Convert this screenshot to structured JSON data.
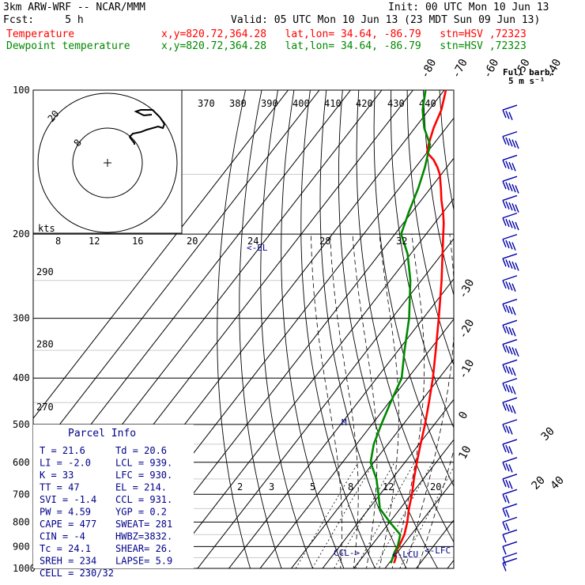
{
  "header": {
    "model": "3km ARW-WRF -- NCAR/MMM",
    "init": "Init: 00 UTC Mon 10 Jun 13",
    "fcst": "Fcst:     5 h",
    "valid": "Valid: 05 UTC Mon 10 Jun 13 (23 MDT Sun 09 Jun 13)",
    "temp_label": "Temperature",
    "temp_info": "x,y=820.72,364.28   lat,lon= 34.64, -86.79   stn=HSV ,72323",
    "dew_label": "Dewpoint temperature",
    "dew_info": "x,y=820.72,364.28   lat,lon= 34.64, -86.79   stn=HSV ,72323"
  },
  "colors": {
    "temperature": "#ff0000",
    "dewpoint": "#008800",
    "annotation": "#00008b",
    "barb": "#0000aa"
  },
  "barb_legend": {
    "title": "Full barb:",
    "units": "5 m s⁻¹"
  },
  "chart_data": {
    "type": "line",
    "title": "",
    "y_axis": {
      "quantity": "pressure",
      "units": "hPa",
      "scale": "log",
      "range": [
        1000,
        100
      ],
      "tick_labels": [
        "100",
        "200",
        "300",
        "400",
        "500",
        "600",
        "700",
        "800",
        "900",
        "1000"
      ]
    },
    "isotherm_labels": [
      "-80",
      "-70",
      "-60",
      "-50",
      "-40",
      "-30",
      "-20",
      "-10",
      "0",
      "10",
      "20",
      "30",
      "40"
    ],
    "theta_labels": [
      "370",
      "380",
      "390",
      "400",
      "410",
      "420",
      "430",
      "440"
    ],
    "theta_side_labels": [
      {
        "text": "290",
        "p": 240
      },
      {
        "text": "280",
        "p": 340
      },
      {
        "text": "270",
        "p": 460
      }
    ],
    "mixing_ratio_labels": [
      "2",
      "3",
      "5",
      "8",
      "12",
      "20"
    ],
    "series": [
      {
        "name": "Temperature",
        "color": "#ff0000",
        "x_units": "degC",
        "points": [
          [
            975,
            21.6
          ],
          [
            950,
            20.8
          ],
          [
            925,
            19.3
          ],
          [
            900,
            19.0
          ],
          [
            850,
            17.8
          ],
          [
            800,
            15.6
          ],
          [
            750,
            12.8
          ],
          [
            700,
            10.2
          ],
          [
            650,
            7.0
          ],
          [
            600,
            3.8
          ],
          [
            550,
            0.5
          ],
          [
            500,
            -3.0
          ],
          [
            450,
            -7.2
          ],
          [
            400,
            -12.0
          ],
          [
            350,
            -18.0
          ],
          [
            300,
            -25.0
          ],
          [
            250,
            -33.5
          ],
          [
            200,
            -44.5
          ],
          [
            190,
            -47.0
          ],
          [
            180,
            -50.0
          ],
          [
            170,
            -53.5
          ],
          [
            160,
            -56.8
          ],
          [
            150,
            -60.5
          ],
          [
            145,
            -63.0
          ],
          [
            140,
            -66.0
          ],
          [
            135,
            -70.0
          ],
          [
            130,
            -71.5
          ],
          [
            120,
            -74.0
          ],
          [
            110,
            -76.0
          ],
          [
            100,
            -79.5
          ]
        ]
      },
      {
        "name": "Dewpoint temperature",
        "color": "#008800",
        "x_units": "degC",
        "points": [
          [
            975,
            20.6
          ],
          [
            950,
            19.8
          ],
          [
            925,
            19.0
          ],
          [
            900,
            18.6
          ],
          [
            850,
            16.5
          ],
          [
            800,
            10.0
          ],
          [
            750,
            3.5
          ],
          [
            700,
            -0.5
          ],
          [
            650,
            -5.0
          ],
          [
            600,
            -11.0
          ],
          [
            550,
            -14.5
          ],
          [
            500,
            -17.0
          ],
          [
            450,
            -19.5
          ],
          [
            400,
            -22.0
          ],
          [
            350,
            -28.0
          ],
          [
            300,
            -34.5
          ],
          [
            250,
            -43.5
          ],
          [
            220,
            -51.0
          ],
          [
            200,
            -58.0
          ],
          [
            180,
            -61.0
          ],
          [
            160,
            -64.0
          ],
          [
            145,
            -67.0
          ],
          [
            130,
            -71.0
          ],
          [
            120,
            -77.0
          ],
          [
            110,
            -82.0
          ],
          [
            100,
            -86.0
          ]
        ]
      }
    ],
    "levels": [
      {
        "text": "LCL",
        "p": 939
      },
      {
        "text": "LFC",
        "p": 930
      },
      {
        "text": "CCL",
        "p": 931
      },
      {
        "text": "EL",
        "p": 214
      },
      {
        "text": "M",
        "p": 505
      }
    ],
    "hodograph": {
      "units": "kts",
      "ring_labels": [
        "8",
        "12",
        "16",
        "20",
        "24",
        "28",
        "32"
      ],
      "inset_ring_labels": [
        "8",
        "20"
      ],
      "trace": [
        [
          34,
          23
        ],
        [
          34,
          25
        ],
        [
          30,
          30
        ],
        [
          28,
          33
        ],
        [
          32,
          37
        ],
        [
          42,
          39
        ],
        [
          50,
          42
        ],
        [
          64,
          46
        ],
        [
          70,
          44
        ],
        [
          72,
          49
        ],
        [
          66,
          58
        ],
        [
          57,
          67
        ],
        [
          48,
          67
        ],
        [
          42,
          67
        ],
        [
          36,
          65
        ],
        [
          46,
          60
        ],
        [
          56,
          61
        ]
      ]
    },
    "wind_barbs": [
      {
        "p": 110,
        "speed_ms": 15
      },
      {
        "p": 125,
        "speed_ms": 25
      },
      {
        "p": 140,
        "speed_ms": 20
      },
      {
        "p": 155,
        "speed_ms": 25
      },
      {
        "p": 170,
        "speed_ms": 25
      },
      {
        "p": 185,
        "speed_ms": 25
      },
      {
        "p": 205,
        "speed_ms": 20
      },
      {
        "p": 225,
        "speed_ms": 25
      },
      {
        "p": 250,
        "speed_ms": 20
      },
      {
        "p": 280,
        "speed_ms": 20
      },
      {
        "p": 310,
        "speed_ms": 20
      },
      {
        "p": 340,
        "speed_ms": 25
      },
      {
        "p": 375,
        "speed_ms": 20
      },
      {
        "p": 410,
        "speed_ms": 20
      },
      {
        "p": 450,
        "speed_ms": 20
      },
      {
        "p": 500,
        "speed_ms": 15
      },
      {
        "p": 550,
        "speed_ms": 15
      },
      {
        "p": 600,
        "speed_ms": 15
      },
      {
        "p": 650,
        "speed_ms": 15
      },
      {
        "p": 700,
        "speed_ms": 10
      },
      {
        "p": 750,
        "speed_ms": 10
      },
      {
        "p": 800,
        "speed_ms": 10
      },
      {
        "p": 850,
        "speed_ms": 5
      },
      {
        "p": 900,
        "speed_ms": 5
      },
      {
        "p": 950,
        "speed_ms": 5
      },
      {
        "p": 975,
        "speed_ms": 5
      }
    ],
    "parcel_info": {
      "title": "Parcel Info",
      "rows": [
        [
          "T  =     21.6",
          "Td =   20.6"
        ],
        [
          "LI =     -2.0",
          "LCL =  939."
        ],
        [
          "K  =       33",
          "LFC =  930."
        ],
        [
          "TT =       47",
          "EL  =  214."
        ],
        [
          "SVI =    -1.4",
          "CCL =  931."
        ],
        [
          "PW =     4.59",
          "YGP =   0.2"
        ],
        [
          "CAPE =    477",
          "SWEAT=  281"
        ],
        [
          "CIN =      -4",
          "HWBZ=3832."
        ],
        [
          "Tc =     24.1",
          "SHEAR=  26."
        ],
        [
          "SREH =    234",
          "LAPSE=  5.9"
        ],
        [
          "CELL = 230/32",
          ""
        ]
      ]
    }
  }
}
